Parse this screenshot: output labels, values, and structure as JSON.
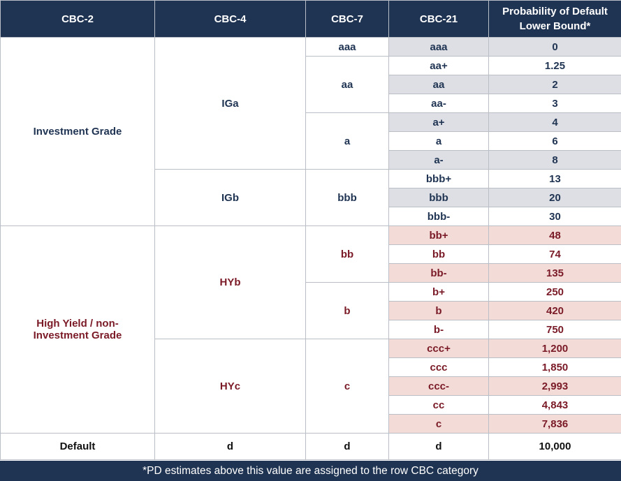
{
  "headers": [
    "CBC-2",
    "CBC-4",
    "CBC-7",
    "CBC-21",
    "Probability of Default Lower Bound*"
  ],
  "groups": {
    "investment_grade": "Investment Grade",
    "high_yield": "High Yield / non-Investment Grade",
    "iga": "IGa",
    "igb": "IGb",
    "hyb": "HYb",
    "hyc": "HYc",
    "aaa": "aaa",
    "aa": "aa",
    "a": "a",
    "bbb": "bbb",
    "bb": "bb",
    "b": "b",
    "c": "c"
  },
  "rows": [
    {
      "cbc21": "aaa",
      "pd": "0"
    },
    {
      "cbc21": "aa+",
      "pd": "1.25"
    },
    {
      "cbc21": "aa",
      "pd": "2"
    },
    {
      "cbc21": "aa-",
      "pd": "3"
    },
    {
      "cbc21": "a+",
      "pd": "4"
    },
    {
      "cbc21": "a",
      "pd": "6"
    },
    {
      "cbc21": "a-",
      "pd": "8"
    },
    {
      "cbc21": "bbb+",
      "pd": "13"
    },
    {
      "cbc21": "bbb",
      "pd": "20"
    },
    {
      "cbc21": "bbb-",
      "pd": "30"
    },
    {
      "cbc21": "bb+",
      "pd": "48"
    },
    {
      "cbc21": "bb",
      "pd": "74"
    },
    {
      "cbc21": "bb-",
      "pd": "135"
    },
    {
      "cbc21": "b+",
      "pd": "250"
    },
    {
      "cbc21": "b",
      "pd": "420"
    },
    {
      "cbc21": "b-",
      "pd": "750"
    },
    {
      "cbc21": "ccc+",
      "pd": "1,200"
    },
    {
      "cbc21": "ccc",
      "pd": "1,850"
    },
    {
      "cbc21": "ccc-",
      "pd": "2,993"
    },
    {
      "cbc21": "cc",
      "pd": "4,843"
    },
    {
      "cbc21": "c",
      "pd": "7,836"
    }
  ],
  "default_row": {
    "cbc2": "Default",
    "cbc4": "d",
    "cbc7": "d",
    "cbc21": "d",
    "pd": "10,000"
  },
  "footer": "*PD estimates above this value are assigned to the row CBC category",
  "colors": {
    "header_bg": "#1f3352",
    "investment_text": "#1f3352",
    "high_yield_text": "#7a1a26",
    "gray_fill": "#dddfe4",
    "pink_fill": "#f3dcd8"
  }
}
